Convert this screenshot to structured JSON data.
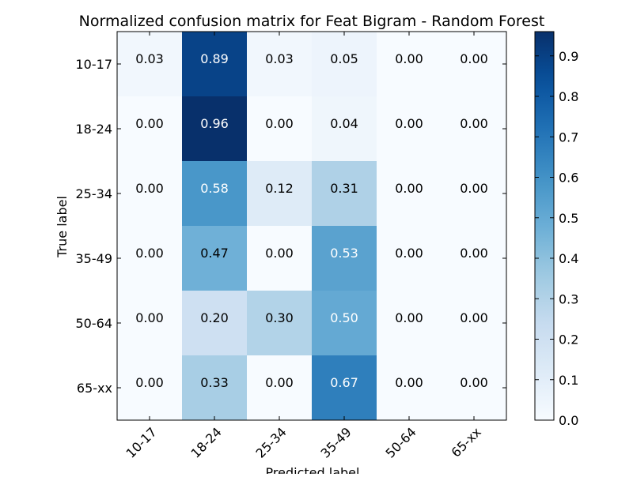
{
  "chart_data": {
    "type": "heatmap",
    "title": "Normalized confusion matrix for Feat Bigram - Random Forest",
    "xlabel": "Predicted label",
    "ylabel": "True label",
    "x_categories": [
      "10-17",
      "18-24",
      "25-34",
      "35-49",
      "50-64",
      "65-xx"
    ],
    "y_categories": [
      "10-17",
      "18-24",
      "25-34",
      "35-49",
      "50-64",
      "65-xx"
    ],
    "values": [
      [
        0.03,
        0.89,
        0.03,
        0.05,
        0.0,
        0.0
      ],
      [
        0.0,
        0.96,
        0.0,
        0.04,
        0.0,
        0.0
      ],
      [
        0.0,
        0.58,
        0.12,
        0.31,
        0.0,
        0.0
      ],
      [
        0.0,
        0.47,
        0.0,
        0.53,
        0.0,
        0.0
      ],
      [
        0.0,
        0.2,
        0.3,
        0.5,
        0.0,
        0.0
      ],
      [
        0.0,
        0.33,
        0.0,
        0.67,
        0.0,
        0.0
      ]
    ],
    "colorscale": "Blues",
    "colorbar": {
      "range": [
        0,
        0.96
      ],
      "ticks": [
        "0.0",
        "0.1",
        "0.2",
        "0.3",
        "0.4",
        "0.5",
        "0.6",
        "0.7",
        "0.8",
        "0.9"
      ]
    },
    "text_threshold": 0.48
  }
}
